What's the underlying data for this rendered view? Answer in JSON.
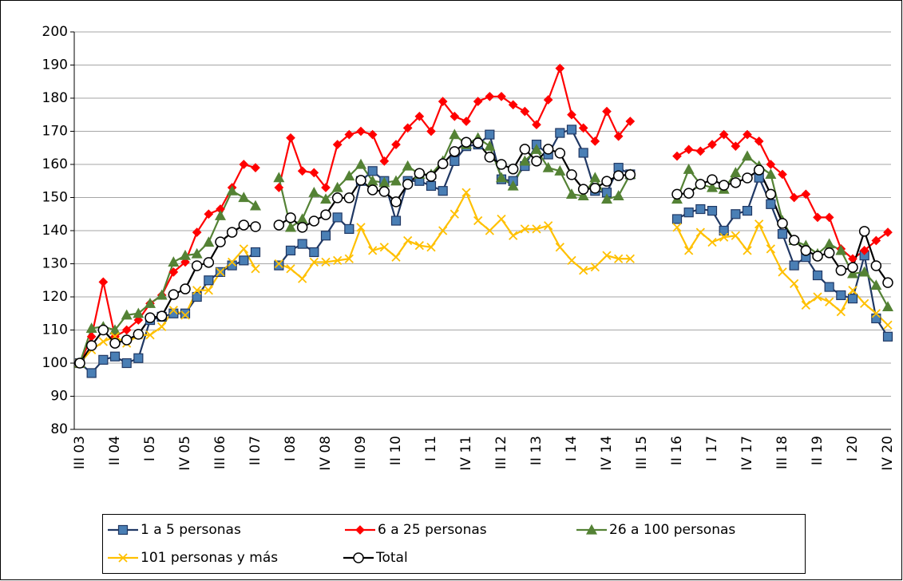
{
  "chart_data": {
    "type": "line",
    "categories": [
      "III 03",
      null,
      null,
      "II 04",
      null,
      null,
      "I 05",
      null,
      null,
      "IV 05",
      null,
      null,
      "III 06",
      null,
      null,
      "II 07",
      null,
      null,
      "I 08",
      null,
      null,
      "IV 08",
      null,
      null,
      "III 09",
      null,
      null,
      "II 10",
      null,
      null,
      "I 11",
      null,
      null,
      "IV 11",
      null,
      null,
      "III 12",
      null,
      null,
      "II 13",
      null,
      null,
      "I 14",
      null,
      null,
      "IV 14",
      null,
      null,
      "III 15",
      null,
      null,
      "II 16",
      null,
      null,
      "I 17",
      null,
      null,
      "IV 17",
      null,
      null,
      "III 18",
      null,
      null,
      "II 19",
      null,
      null,
      "I 20",
      null,
      null,
      "IV 20"
    ],
    "series": [
      {
        "name": "1 a 5 personas",
        "color": "#203864",
        "marker_color": "#4a7fb5",
        "marker": "square",
        "values": [
          100,
          97,
          101,
          102,
          100,
          101.5,
          113,
          114,
          115,
          115,
          120,
          125,
          127.5,
          129.5,
          131,
          133.5,
          null,
          129.5,
          134,
          136,
          133.5,
          138.5,
          144,
          140.5,
          155,
          158,
          155,
          143,
          155,
          155,
          153.5,
          152,
          161,
          165.5,
          166,
          169,
          155.5,
          155,
          159.5,
          166,
          163,
          169.5,
          170.5,
          163.5,
          152,
          151.5,
          159,
          157,
          null,
          null,
          null,
          143.5,
          145.5,
          146.5,
          146,
          140,
          145,
          146,
          156,
          148,
          139,
          129.5,
          132,
          126.5,
          123,
          120.5,
          119.5,
          132.5,
          113.5,
          108
        ]
      },
      {
        "name": "6 a 25 personas",
        "color": "#ff0000",
        "marker_color": "#ff0000",
        "marker": "diamond",
        "values": [
          100,
          108,
          124.5,
          108,
          110,
          113,
          118,
          120.5,
          127.5,
          130.5,
          139.5,
          145,
          146.5,
          153,
          160,
          159,
          null,
          153,
          168,
          158,
          157.5,
          153,
          166,
          169,
          170,
          169,
          161,
          166,
          171,
          174.5,
          170,
          179,
          174.5,
          173,
          179,
          180.5,
          180.5,
          178,
          176,
          172,
          179.5,
          189,
          175,
          171,
          167,
          176,
          168.5,
          173,
          null,
          null,
          null,
          162.5,
          164.5,
          164,
          166,
          169,
          165.5,
          169,
          167,
          160,
          157,
          150,
          151,
          144,
          144,
          134.5,
          131.5,
          134,
          137,
          139.5
        ]
      },
      {
        "name": "26 a 100 personas",
        "color": "#548235",
        "marker_color": "#548235",
        "marker": "triangle",
        "values": [
          100,
          110.5,
          111,
          110,
          114.5,
          115,
          118,
          120.5,
          130.5,
          132.5,
          133,
          136.5,
          144.5,
          152,
          150,
          147.5,
          null,
          156,
          141,
          143.5,
          151.5,
          149.5,
          153,
          156.5,
          160,
          155,
          154.5,
          155,
          159.5,
          157,
          157,
          161,
          169,
          166,
          168,
          165.5,
          156,
          153.5,
          161,
          164.5,
          159,
          158,
          151,
          150.5,
          156,
          149.5,
          150.5,
          157,
          null,
          null,
          null,
          149.5,
          158.5,
          154,
          153,
          152.5,
          157.5,
          162.5,
          159.5,
          157,
          143,
          137,
          135.5,
          133,
          136,
          134,
          127,
          127.5,
          123.5,
          117
        ]
      },
      {
        "name": "101 personas y más",
        "color": "#ffc000",
        "marker_color": "#ffc000",
        "marker": "x",
        "values": [
          100,
          104,
          106.5,
          108,
          106,
          108.5,
          108.5,
          111,
          116,
          114.5,
          122,
          122,
          127.5,
          130.5,
          134.5,
          128.5,
          null,
          130,
          128.5,
          125.5,
          130.5,
          130.5,
          131,
          131.5,
          141,
          134,
          135,
          132,
          137,
          135.5,
          135,
          140,
          145,
          151.5,
          143,
          140,
          143.5,
          138.5,
          140.5,
          140.5,
          141.5,
          135,
          131,
          128,
          129,
          132.5,
          131.5,
          131.5,
          null,
          null,
          null,
          141,
          134,
          139.5,
          136.5,
          138,
          138.5,
          134,
          142,
          134.5,
          127.5,
          124,
          117.5,
          120,
          118.5,
          115.5,
          122,
          118,
          115,
          111.5
        ]
      },
      {
        "name": "Total",
        "color": "#000000",
        "marker_color": "#ffffff",
        "marker": "circle",
        "values": [
          100,
          105.3,
          110,
          106,
          107,
          108.7,
          113.7,
          114.2,
          120.7,
          122.4,
          129.4,
          130.4,
          136.6,
          139.5,
          141.7,
          141.2,
          null,
          141.7,
          143.9,
          141,
          142.9,
          144.8,
          149.9,
          149.9,
          155.2,
          152.3,
          151.8,
          148.7,
          154,
          157.3,
          156.4,
          160.2,
          163.9,
          166.7,
          166.5,
          162.2,
          160,
          158.6,
          164.6,
          161,
          164.6,
          163.4,
          156.9,
          152.5,
          152.8,
          154.9,
          156.6,
          156.9,
          null,
          null,
          null,
          151,
          151.3,
          154,
          155.4,
          153.7,
          154.5,
          155.9,
          158.3,
          151,
          142.2,
          137.1,
          134,
          132.3,
          133.3,
          128,
          128.9,
          139.8,
          129.4,
          124.3
        ]
      }
    ],
    "ylim": [
      80,
      200
    ],
    "yticks": [
      80,
      90,
      100,
      110,
      120,
      130,
      140,
      150,
      160,
      170,
      180,
      190,
      200
    ],
    "grid": true,
    "legend": "bottom"
  }
}
